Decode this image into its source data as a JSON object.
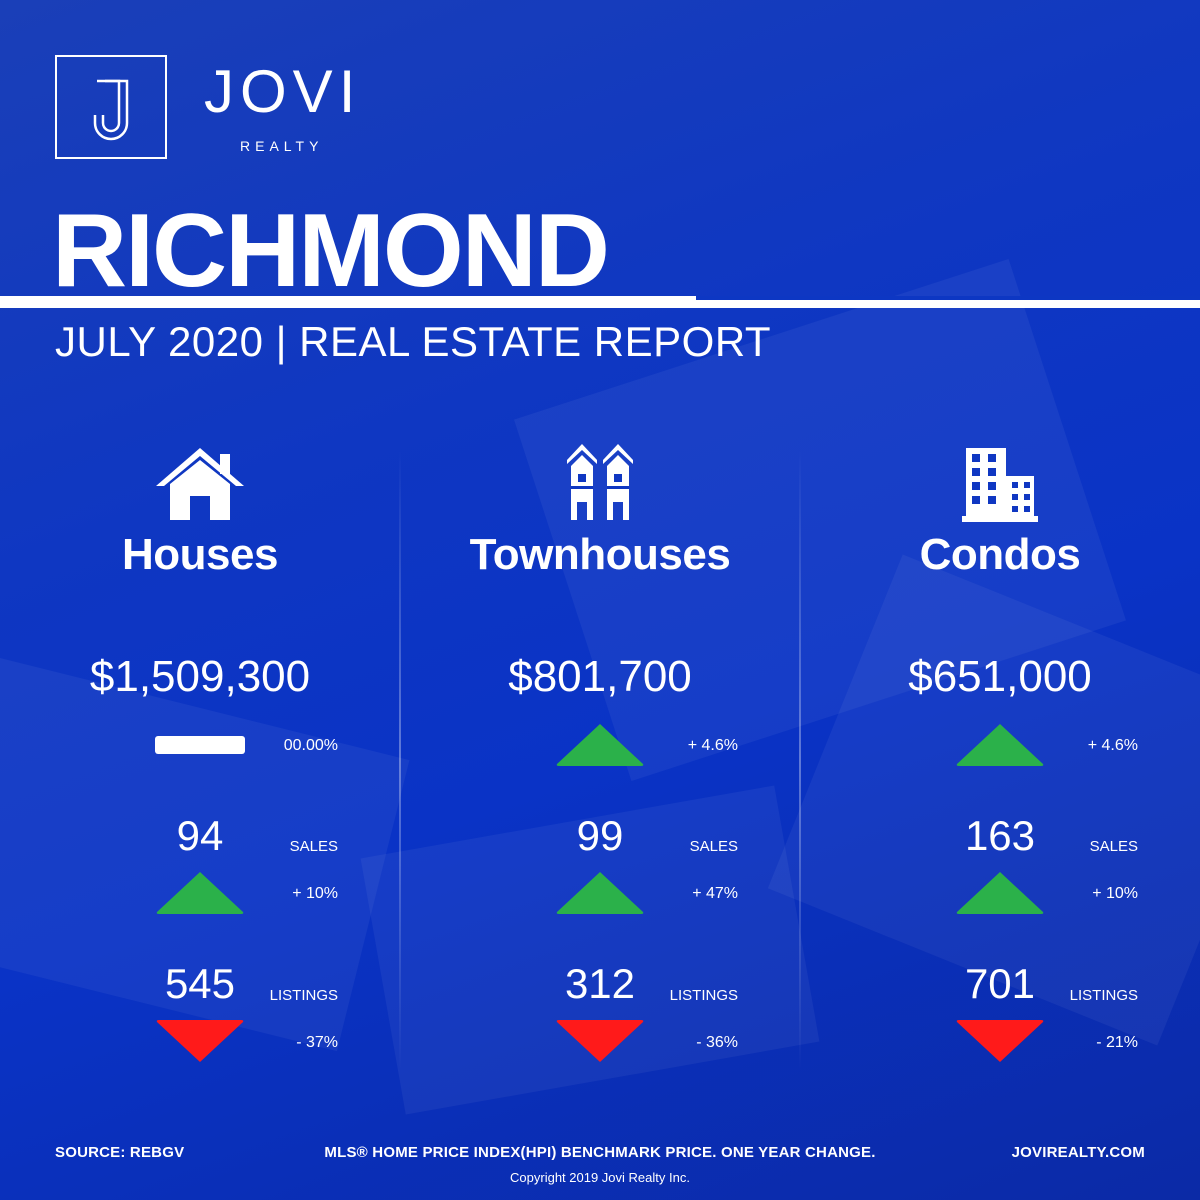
{
  "brand": {
    "name": "JOVI",
    "sub": "REALTY",
    "logo_letter": "J"
  },
  "city": "RICHMOND",
  "subtitle": "JULY 2020 | REAL ESTATE REPORT",
  "colors": {
    "background": "#0f37c2",
    "up": "#2bb14a",
    "down": "#ff1a1a",
    "text": "#ffffff"
  },
  "columns": [
    {
      "icon": "house-icon",
      "title": "Houses",
      "price": "$1,509,300",
      "price_change": "00.00%",
      "price_trend": "flat",
      "sales": "94",
      "sales_label": "SALES",
      "sales_change": "+ 10%",
      "sales_trend": "up",
      "listings": "545",
      "listings_label": "LISTINGS",
      "listings_change": "- 37%",
      "listings_trend": "down"
    },
    {
      "icon": "townhouse-icon",
      "title": "Townhouses",
      "price": "$801,700",
      "price_change": "+ 4.6%",
      "price_trend": "up",
      "sales": "99",
      "sales_label": "SALES",
      "sales_change": "+ 47%",
      "sales_trend": "up",
      "listings": "312",
      "listings_label": "LISTINGS",
      "listings_change": "- 36%",
      "listings_trend": "down"
    },
    {
      "icon": "condo-building-icon",
      "title": "Condos",
      "price": "$651,000",
      "price_change": "+ 4.6%",
      "price_trend": "up",
      "sales": "163",
      "sales_label": "SALES",
      "sales_change": "+ 10%",
      "sales_trend": "up",
      "listings": "701",
      "listings_label": "LISTINGS",
      "listings_change": "- 21%",
      "listings_trend": "down"
    }
  ],
  "footer": {
    "source": "SOURCE:  REBGV",
    "note": "MLS® HOME PRICE INDEX(HPI) BENCHMARK PRICE. ONE YEAR CHANGE.",
    "website": "JOVIREALTY.COM",
    "copyright": "Copyright 2019 Jovi Realty Inc."
  }
}
